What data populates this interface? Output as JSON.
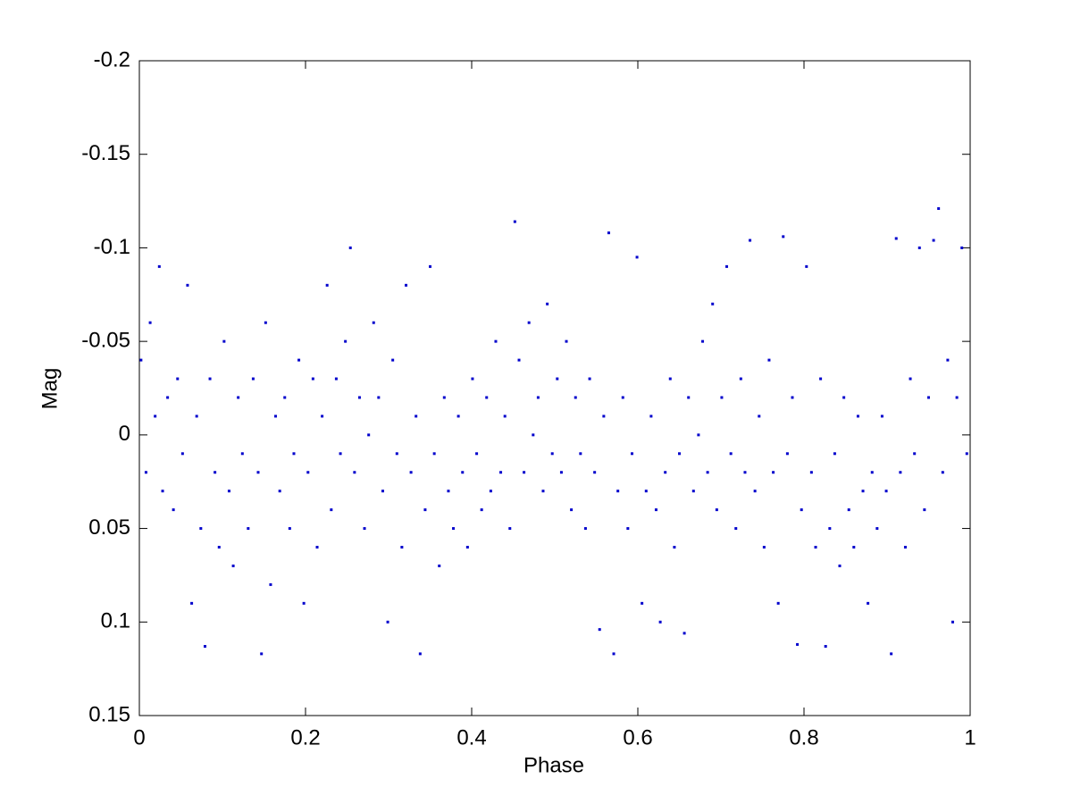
{
  "chart_data": {
    "type": "scatter",
    "x_label": "Phase",
    "y_label": "Mag",
    "xlim": [
      0,
      1
    ],
    "xticks": [
      0,
      0.2,
      0.4,
      0.6,
      0.8,
      1
    ],
    "ylim": [
      -0.2,
      0.15
    ],
    "yticks": [
      -0.2,
      -0.15,
      -0.1,
      -0.05,
      0,
      0.05,
      0.1,
      0.15
    ],
    "y_reversed": true,
    "grid": false,
    "series": [
      {
        "color": "#0000cc",
        "x": [
          0.002,
          0.008,
          0.013,
          0.019,
          0.024,
          0.028,
          0.034,
          0.041,
          0.046,
          0.052,
          0.058,
          0.063,
          0.069,
          0.074,
          0.079,
          0.085,
          0.091,
          0.096,
          0.102,
          0.108,
          0.113,
          0.119,
          0.124,
          0.131,
          0.137,
          0.143,
          0.147,
          0.152,
          0.158,
          0.164,
          0.169,
          0.175,
          0.181,
          0.186,
          0.192,
          0.198,
          0.203,
          0.209,
          0.214,
          0.22,
          0.226,
          0.231,
          0.237,
          0.242,
          0.248,
          0.254,
          0.259,
          0.265,
          0.271,
          0.276,
          0.282,
          0.288,
          0.293,
          0.299,
          0.305,
          0.31,
          0.316,
          0.321,
          0.327,
          0.333,
          0.338,
          0.344,
          0.35,
          0.355,
          0.361,
          0.367,
          0.372,
          0.378,
          0.384,
          0.389,
          0.395,
          0.401,
          0.406,
          0.412,
          0.418,
          0.423,
          0.429,
          0.435,
          0.44,
          0.446,
          0.452,
          0.457,
          0.463,
          0.469,
          0.474,
          0.48,
          0.486,
          0.491,
          0.497,
          0.503,
          0.508,
          0.514,
          0.52,
          0.525,
          0.531,
          0.537,
          0.542,
          0.548,
          0.554,
          0.559,
          0.565,
          0.571,
          0.576,
          0.582,
          0.588,
          0.593,
          0.599,
          0.605,
          0.61,
          0.616,
          0.622,
          0.627,
          0.633,
          0.639,
          0.644,
          0.65,
          0.656,
          0.661,
          0.667,
          0.673,
          0.678,
          0.684,
          0.69,
          0.695,
          0.701,
          0.707,
          0.712,
          0.718,
          0.724,
          0.729,
          0.735,
          0.741,
          0.746,
          0.752,
          0.758,
          0.763,
          0.769,
          0.775,
          0.78,
          0.786,
          0.792,
          0.797,
          0.803,
          0.809,
          0.814,
          0.82,
          0.826,
          0.831,
          0.837,
          0.843,
          0.848,
          0.854,
          0.86,
          0.865,
          0.871,
          0.877,
          0.882,
          0.888,
          0.894,
          0.899,
          0.905,
          0.911,
          0.916,
          0.922,
          0.928,
          0.933,
          0.939,
          0.945,
          0.95,
          0.956,
          0.962,
          0.967,
          0.973,
          0.979,
          0.984,
          0.99,
          0.996
        ],
        "values": [
          -0.04,
          0.02,
          -0.06,
          -0.01,
          -0.09,
          0.03,
          -0.02,
          0.04,
          -0.03,
          0.01,
          -0.08,
          0.09,
          -0.01,
          0.05,
          0.113,
          -0.03,
          0.02,
          0.06,
          -0.05,
          0.03,
          0.07,
          -0.02,
          0.01,
          0.05,
          -0.03,
          0.02,
          0.117,
          -0.06,
          0.08,
          -0.01,
          0.03,
          -0.02,
          0.05,
          0.01,
          -0.04,
          0.09,
          0.02,
          -0.03,
          0.06,
          -0.01,
          -0.08,
          0.04,
          -0.03,
          0.01,
          -0.05,
          -0.1,
          0.02,
          -0.02,
          0.05,
          0.0,
          -0.06,
          -0.02,
          0.03,
          0.1,
          -0.04,
          0.01,
          0.06,
          -0.08,
          0.02,
          -0.01,
          0.117,
          0.04,
          -0.09,
          0.01,
          0.07,
          -0.02,
          0.03,
          0.05,
          -0.01,
          0.02,
          0.06,
          -0.03,
          0.01,
          0.04,
          -0.02,
          0.03,
          -0.05,
          0.02,
          -0.01,
          0.05,
          -0.114,
          -0.04,
          0.02,
          -0.06,
          0.0,
          -0.02,
          0.03,
          -0.07,
          0.01,
          -0.03,
          0.02,
          -0.05,
          0.04,
          -0.02,
          0.01,
          0.05,
          -0.03,
          0.02,
          0.104,
          -0.01,
          -0.108,
          0.117,
          0.03,
          -0.02,
          0.05,
          0.01,
          -0.095,
          0.09,
          0.03,
          -0.01,
          0.04,
          0.1,
          0.02,
          -0.03,
          0.06,
          0.01,
          0.106,
          -0.02,
          0.03,
          0.0,
          -0.05,
          0.02,
          -0.07,
          0.04,
          -0.02,
          -0.09,
          0.01,
          0.05,
          -0.03,
          0.02,
          -0.104,
          0.03,
          -0.01,
          0.06,
          -0.04,
          0.02,
          0.09,
          -0.106,
          0.01,
          -0.02,
          0.112,
          0.04,
          -0.09,
          0.02,
          0.06,
          -0.03,
          0.113,
          0.05,
          0.01,
          0.07,
          -0.02,
          0.04,
          0.06,
          -0.01,
          0.03,
          0.09,
          0.02,
          0.05,
          -0.01,
          0.03,
          0.117,
          -0.105,
          0.02,
          0.06,
          -0.03,
          0.01,
          -0.1,
          0.04,
          -0.02,
          -0.104,
          -0.121,
          0.02,
          -0.04,
          0.1,
          -0.02,
          -0.1,
          0.01
        ]
      }
    ]
  }
}
